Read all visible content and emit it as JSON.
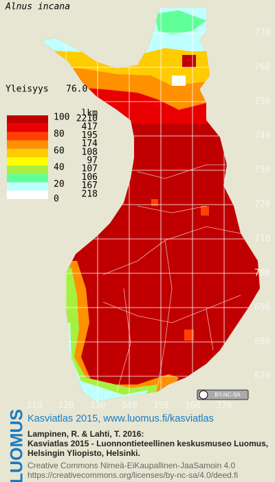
{
  "map": {
    "title": "Alnus incana",
    "frequency_label": "Yleisyys",
    "frequency": "76.0",
    "legend": {
      "scale_labels": [
        100,
        80,
        60,
        40,
        20,
        0
      ],
      "count_header": "lkm",
      "classes": [
        {
          "color": "#c00000",
          "count": 2210
        },
        {
          "color": "#e80000",
          "count": 417
        },
        {
          "color": "#ff4000",
          "count": 195
        },
        {
          "color": "#ff9000",
          "count": 174
        },
        {
          "color": "#ffcc00",
          "count": 108
        },
        {
          "color": "#ffff00",
          "count": 97
        },
        {
          "color": "#a8f040",
          "count": 107
        },
        {
          "color": "#60ff98",
          "count": 106
        },
        {
          "color": "#c0ffff",
          "count": 167
        },
        {
          "color": "#ffffff",
          "count": 218
        }
      ]
    },
    "xlim": [
      300,
      380
    ],
    "ylim": [
      662,
      779
    ],
    "xticks": [
      310,
      320,
      330,
      340,
      350,
      360,
      370
    ],
    "yticks": [
      670,
      680,
      690,
      700,
      710,
      720,
      730,
      740,
      750,
      760,
      770
    ],
    "license_badge": "BY-NC-SA",
    "footer": {
      "brand": "LUOMUS",
      "headline": "Kasviatlas 2015, www.luomus.fi/kasviatlas",
      "citation": [
        "Lampinen, R. & Lahti, T. 2016:",
        "Kasviatlas 2015 - Luonnontieteellinen keskusmuseo Luomus,",
        "Helsingin Yliopisto, Helsinki."
      ],
      "license": "Creative Commons Nimeä-EiKaupallinen-JaaSamoin 4.0",
      "license_url": "https://creativecommons.org/licenses/by-nc-sa/4.0/deed.fi"
    }
  }
}
